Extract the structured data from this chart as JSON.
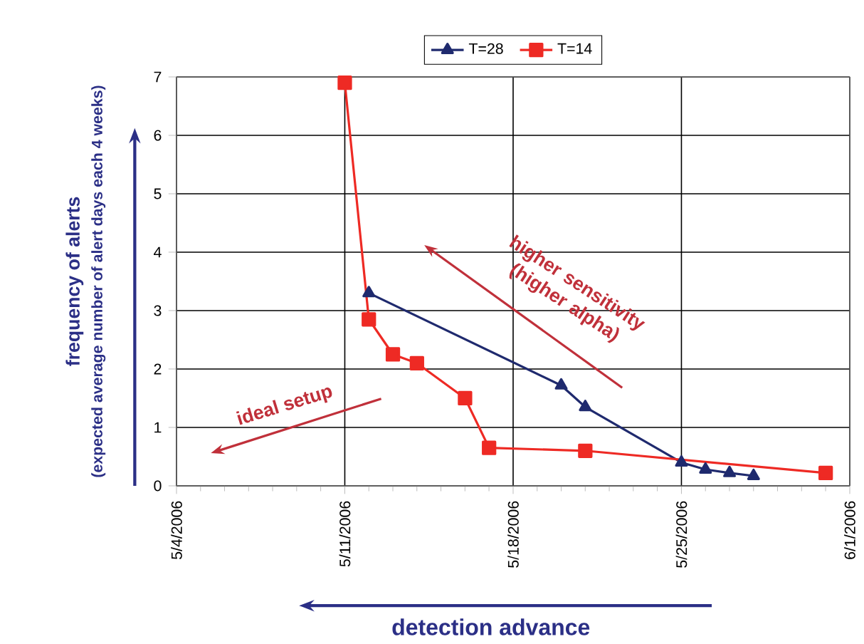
{
  "chart_data": {
    "type": "line",
    "ylabel": "frequency of alerts",
    "xlabel": "detection advance",
    "annotations": [
      "(expected average number of alert days each 4 weeks)",
      "higher sensitivity (higher alpha)",
      "ideal setup"
    ],
    "xlim": [
      "2006-05-04",
      "2006-06-01"
    ],
    "xticks": [
      {
        "value": "2006-05-04",
        "label": "5/4/2006"
      },
      {
        "value": "2006-05-11",
        "label": "5/11/2006"
      },
      {
        "value": "2006-05-18",
        "label": "5/18/2006"
      },
      {
        "value": "2006-05-25",
        "label": "5/25/2006"
      },
      {
        "value": "2006-06-01",
        "label": "6/1/2006"
      }
    ],
    "ylim": [
      0,
      7
    ],
    "yticks": [
      0,
      1,
      2,
      3,
      4,
      5,
      6,
      7
    ],
    "grid": true,
    "legend": "top",
    "series": [
      {
        "name": "T=28",
        "color": "#1f2a6e",
        "marker": "triangle",
        "x": [
          "2006-05-12",
          "2006-05-20",
          "2006-05-21",
          "2006-05-25",
          "2006-05-26",
          "2006-05-27",
          "2006-05-28"
        ],
        "values": [
          3.3,
          1.72,
          1.35,
          0.4,
          0.28,
          0.22,
          0.17
        ]
      },
      {
        "name": "T=14",
        "color": "#ee2a24",
        "marker": "square",
        "x": [
          "2006-05-11",
          "2006-05-12",
          "2006-05-13",
          "2006-05-14",
          "2006-05-16",
          "2006-05-17",
          "2006-05-21",
          "2006-05-31"
        ],
        "values": [
          6.9,
          2.85,
          2.25,
          2.1,
          1.5,
          0.65,
          0.6,
          0.22
        ]
      }
    ]
  }
}
